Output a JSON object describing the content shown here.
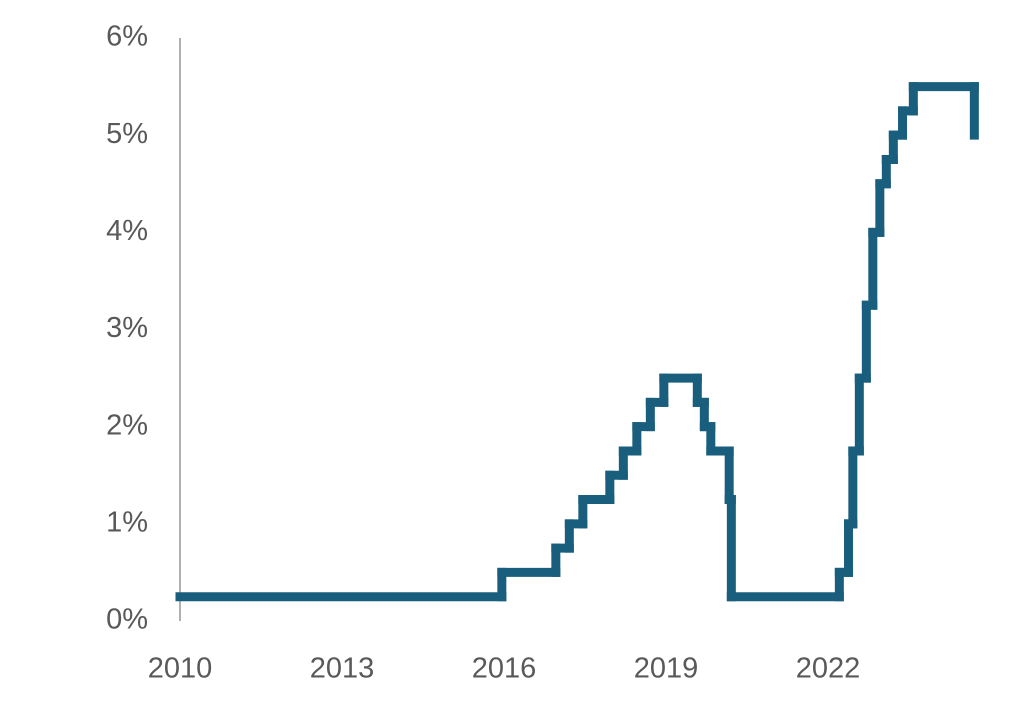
{
  "chart_data": {
    "type": "line",
    "step": true,
    "x": [
      2010.0,
      2015.96,
      2016.96,
      2017.21,
      2017.46,
      2017.96,
      2018.21,
      2018.46,
      2018.71,
      2018.96,
      2019.58,
      2019.71,
      2019.83,
      2020.17,
      2020.21,
      2022.21,
      2022.38,
      2022.46,
      2022.58,
      2022.71,
      2022.83,
      2022.96,
      2023.08,
      2023.21,
      2023.38,
      2023.58,
      2024.71
    ],
    "values": [
      0.25,
      0.5,
      0.75,
      1.0,
      1.25,
      1.5,
      1.75,
      2.0,
      2.25,
      2.5,
      2.25,
      2.0,
      1.75,
      1.25,
      0.25,
      0.5,
      1.0,
      1.75,
      2.5,
      3.25,
      4.0,
      4.5,
      4.75,
      5.0,
      5.25,
      5.5,
      5.0
    ],
    "color": "#1a5e7e",
    "xlim": [
      2010,
      2025.2
    ],
    "xticks": [
      2010,
      2013,
      2016,
      2019,
      2022
    ],
    "ylim": [
      0,
      6
    ],
    "yticks": [
      {
        "value": 0,
        "label": "0%"
      },
      {
        "value": 1,
        "label": "1%"
      },
      {
        "value": 2,
        "label": "2%"
      },
      {
        "value": 3,
        "label": "3%"
      },
      {
        "value": 4,
        "label": "4%"
      },
      {
        "value": 5,
        "label": "5%"
      },
      {
        "value": 6,
        "label": "6%"
      }
    ]
  }
}
